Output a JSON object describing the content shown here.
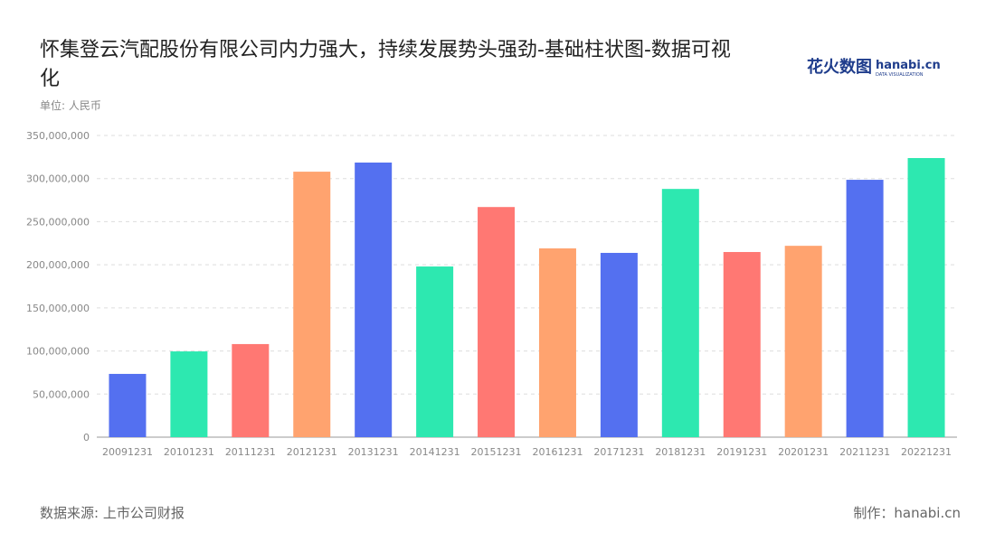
{
  "title": "怀集登云汽配股份有限公司内力强大，持续发展势头强劲-基础柱状图-数据可视化",
  "subtitle": "单位: 人民币",
  "logo": {
    "cn": "花火数图",
    "en": "hanabi.cn",
    "sub": "DATA VISUALIZATION"
  },
  "footer": {
    "source": "数据来源: 上市公司财报",
    "maker": "制作：hanabi.cn"
  },
  "chart_data": {
    "type": "bar",
    "title": "怀集登云汽配股份有限公司内力强大，持续发展势头强劲-基础柱状图-数据可视化",
    "categories": [
      "20091231",
      "20101231",
      "20111231",
      "20121231",
      "20131231",
      "20141231",
      "20151231",
      "20161231",
      "20171231",
      "20181231",
      "20191231",
      "20201231",
      "20211231",
      "20221231"
    ],
    "values": [
      73400000,
      99500000,
      108000000,
      308000000,
      318600000,
      198000000,
      267000000,
      219000000,
      213800000,
      288000000,
      214800000,
      222000000,
      298600000,
      323800000
    ],
    "ylim": [
      0,
      350000000
    ],
    "yticks": [
      "0",
      "50,000,000",
      "100,000,000",
      "150,000,000",
      "200,000,000",
      "250,000,000",
      "300,000,000",
      "350,000,000"
    ],
    "grid": true,
    "colors": [
      "#5470f0",
      "#2de8b0",
      "#ff7873",
      "#ffa36f"
    ]
  }
}
